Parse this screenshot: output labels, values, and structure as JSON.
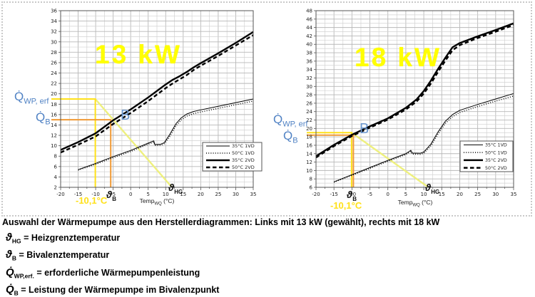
{
  "figure": {
    "caption": "Auswahl der Wärmepumpe aus den Herstellerdiagrammen: Links mit 13 kW (gewählt), rechts mit 18 kW",
    "definitions": [
      {
        "sym": "ϑ",
        "sub": "HG",
        "rest": " = Heizgrenztemperatur"
      },
      {
        "sym": "ϑ",
        "sub": "B",
        "rest": " = Bivalenztemperatur"
      },
      {
        "sym": "Q̇",
        "sub": "WP,erf.",
        "rest": " = erforderliche Wärmepumpenleistung"
      },
      {
        "sym": "Q̇",
        "sub": "B",
        "rest": " = Leistung der Wärmepumpe im Bivalenzpunkt"
      }
    ]
  },
  "colors": {
    "annotation_yellow": "#ffe11a",
    "demand_line_yellow": "#eef07e",
    "annotation_orange": "#f09a36",
    "label_blue": "#5082c4",
    "title_yellow": "#ffff00",
    "grid_minor": "#d2d2d2",
    "grid_major": "#b8b8b8",
    "axis": "#555555",
    "curve": "#000000"
  },
  "chart_data": [
    {
      "type": "line",
      "title": "13 kW",
      "xlabel": {
        "main": "Temp",
        "sub": "WQ",
        "unit": " (°C)"
      },
      "xlim": [
        -20,
        35
      ],
      "ylim": [
        2,
        36
      ],
      "x_major": 5,
      "x_minor": 2.5,
      "y_major": 2,
      "y_minor": 1,
      "legend_position": "lower right",
      "legend": [
        "35°C 1VD",
        "50°C 1VD",
        "35°C 2VD",
        "50°C 2VD"
      ],
      "series": [
        {
          "name": "35°C 1VD",
          "style": "thin-solid",
          "points": [
            [
              -15,
              5.4
            ],
            [
              -10,
              6.6
            ],
            [
              -5,
              7.9
            ],
            [
              0,
              9.1
            ],
            [
              5,
              10.5
            ],
            [
              6.6,
              10.95
            ],
            [
              6.9,
              10.25
            ],
            [
              8.6,
              10.3
            ],
            [
              9.6,
              10.6
            ],
            [
              11,
              12.0
            ],
            [
              13,
              14.3
            ],
            [
              14.5,
              15.4
            ],
            [
              16,
              16.1
            ],
            [
              18,
              16.6
            ],
            [
              20,
              16.9
            ],
            [
              25,
              17.6
            ],
            [
              30,
              18.3
            ],
            [
              35,
              19.0
            ]
          ]
        },
        {
          "name": "50°C 1VD",
          "style": "dotted",
          "points": [
            [
              -15,
              5.3
            ],
            [
              -10,
              6.45
            ],
            [
              -5,
              7.7
            ],
            [
              0,
              8.9
            ],
            [
              5,
              10.3
            ],
            [
              6.6,
              10.7
            ],
            [
              6.9,
              10.05
            ],
            [
              8.6,
              10.1
            ],
            [
              9.6,
              10.4
            ],
            [
              11,
              11.6
            ],
            [
              13,
              13.9
            ],
            [
              14.5,
              15.0
            ],
            [
              16,
              15.7
            ],
            [
              18,
              16.2
            ],
            [
              20,
              16.5
            ],
            [
              25,
              17.2
            ],
            [
              30,
              17.9
            ],
            [
              35,
              18.6
            ]
          ]
        },
        {
          "name": "35°C 2VD",
          "style": "thick-solid",
          "points": [
            [
              -20,
              9.2
            ],
            [
              -15,
              10.7
            ],
            [
              -10,
              12.4
            ],
            [
              -5,
              14.9
            ],
            [
              0,
              17.0
            ],
            [
              5,
              19.3
            ],
            [
              8,
              20.8
            ],
            [
              10,
              21.8
            ],
            [
              12,
              22.7
            ],
            [
              14,
              23.4
            ],
            [
              16,
              24.2
            ],
            [
              18,
              25.1
            ],
            [
              20,
              25.9
            ],
            [
              25,
              27.8
            ],
            [
              30,
              29.8
            ],
            [
              35,
              31.9
            ]
          ]
        },
        {
          "name": "50°C 2VD",
          "style": "thick-dashed",
          "points": [
            [
              -20,
              8.7
            ],
            [
              -15,
              10.2
            ],
            [
              -10,
              11.8
            ],
            [
              -5,
              14.2
            ],
            [
              0,
              16.3
            ],
            [
              5,
              18.6
            ],
            [
              8,
              20.1
            ],
            [
              10,
              21.1
            ],
            [
              12,
              22.0
            ],
            [
              14,
              22.8
            ],
            [
              16,
              23.6
            ],
            [
              18,
              24.6
            ],
            [
              20,
              25.4
            ],
            [
              25,
              27.3
            ],
            [
              30,
              29.3
            ],
            [
              35,
              31.3
            ]
          ]
        }
      ],
      "annotations": {
        "q_wp_erf": {
          "label": "Q̇",
          "sub": "WP, erf",
          "value": 19
        },
        "q_b": {
          "label": "Q̇",
          "sub": "B",
          "value": 15
        },
        "bivalence_point": {
          "label": "B",
          "x": -5.7,
          "y": 15
        },
        "theta_b": {
          "label": "ϑ",
          "sub": "B",
          "x": -5.7
        },
        "theta_hg": {
          "label": "ϑ",
          "sub": "HG",
          "x": 11
        },
        "cold_temp_label": "-10,1°C",
        "design_temp_x": -10.1,
        "demand_line": [
          [
            -10.1,
            19
          ],
          [
            11.8,
            2
          ]
        ]
      }
    },
    {
      "type": "line",
      "title": "18 kW",
      "xlabel": {
        "main": "Temp",
        "sub": "WQ",
        "unit": " (°C)"
      },
      "xlim": [
        -20,
        35
      ],
      "ylim": [
        6,
        48
      ],
      "x_major": 5,
      "x_minor": 2.5,
      "y_major": 2,
      "y_minor": 1,
      "legend_position": "lower right",
      "legend": [
        "35°C 1VD",
        "50°C 1VD",
        "35°C 2VD",
        "50°C 2VD"
      ],
      "series": [
        {
          "name": "35°C 1VD",
          "style": "thin-solid",
          "points": [
            [
              -15,
              7.3
            ],
            [
              -10,
              9.0
            ],
            [
              -5,
              10.7
            ],
            [
              0,
              12.4
            ],
            [
              5,
              14.0
            ],
            [
              6.4,
              14.8
            ],
            [
              6.8,
              14.15
            ],
            [
              9,
              14.1
            ],
            [
              10,
              14.4
            ],
            [
              12,
              16.3
            ],
            [
              14,
              19.2
            ],
            [
              16,
              21.7
            ],
            [
              18,
              23.3
            ],
            [
              20,
              24.3
            ],
            [
              25,
              25.7
            ],
            [
              30,
              27.0
            ],
            [
              35,
              28.3
            ]
          ]
        },
        {
          "name": "50°C 1VD",
          "style": "dotted",
          "points": [
            [
              -15,
              7.2
            ],
            [
              -10,
              8.85
            ],
            [
              -5,
              10.5
            ],
            [
              0,
              12.2
            ],
            [
              5,
              13.8
            ],
            [
              6.4,
              14.55
            ],
            [
              6.8,
              13.9
            ],
            [
              9,
              13.85
            ],
            [
              10,
              14.1
            ],
            [
              12,
              15.9
            ],
            [
              14,
              18.7
            ],
            [
              16,
              21.2
            ],
            [
              18,
              22.8
            ],
            [
              20,
              23.8
            ],
            [
              25,
              25.2
            ],
            [
              30,
              26.5
            ],
            [
              35,
              27.7
            ]
          ]
        },
        {
          "name": "35°C 2VD",
          "style": "thick-solid",
          "points": [
            [
              -20,
              13.4
            ],
            [
              -15,
              16.1
            ],
            [
              -10,
              18.5
            ],
            [
              -5,
              20.5
            ],
            [
              0,
              22.4
            ],
            [
              5,
              24.9
            ],
            [
              8,
              26.9
            ],
            [
              10,
              28.9
            ],
            [
              12,
              31.4
            ],
            [
              14,
              34.2
            ],
            [
              16,
              36.8
            ],
            [
              18,
              39.3
            ],
            [
              20,
              40.3
            ],
            [
              25,
              41.9
            ],
            [
              30,
              43.4
            ],
            [
              35,
              45.0
            ]
          ]
        },
        {
          "name": "50°C 2VD",
          "style": "thick-dashed",
          "points": [
            [
              -20,
              13.1
            ],
            [
              -15,
              15.8
            ],
            [
              -10,
              18.2
            ],
            [
              -5,
              20.2
            ],
            [
              0,
              22.1
            ],
            [
              5,
              24.5
            ],
            [
              8,
              26.4
            ],
            [
              10,
              28.3
            ],
            [
              12,
              30.7
            ],
            [
              14,
              33.5
            ],
            [
              16,
              36.1
            ],
            [
              18,
              38.6
            ],
            [
              20,
              39.8
            ],
            [
              25,
              41.5
            ],
            [
              30,
              43.0
            ],
            [
              35,
              44.6
            ]
          ]
        }
      ],
      "annotations": {
        "q_wp_erf": {
          "label": "Q̇",
          "sub": "WP, erf",
          "value": 19
        },
        "q_b": {
          "label": "Q̇",
          "sub": "B",
          "value": 18.4
        },
        "bivalence_point": {
          "label": "B",
          "x": -9.6,
          "y": 18.5
        },
        "theta_b": {
          "label": "ϑ",
          "sub": "B",
          "x": -9.3
        },
        "theta_hg": {
          "label": "ϑ",
          "sub": "HG",
          "x": 10.8
        },
        "cold_temp_label": "-10,1°C",
        "design_temp_x": -10.1,
        "demand_line": [
          [
            -10.1,
            19
          ],
          [
            11.3,
            6
          ]
        ]
      }
    }
  ]
}
